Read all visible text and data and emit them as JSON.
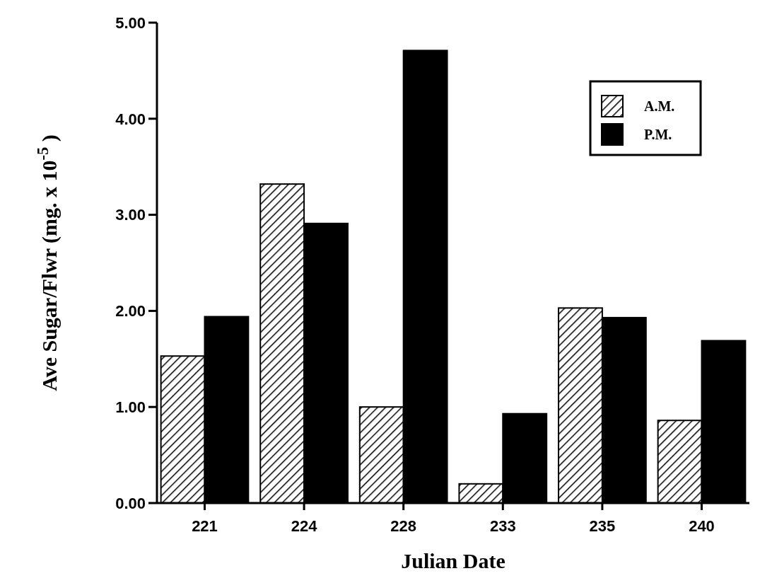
{
  "chart_data": {
    "type": "bar",
    "xlabel": "Julian Date",
    "ylabel": "Ave Sugar/Flwr (mg. x 10$^{-5}$ )",
    "categories": [
      "221",
      "224",
      "228",
      "233",
      "235",
      "240"
    ],
    "series": [
      {
        "name": "A.M.",
        "color": "#000000",
        "values": [
          1.53,
          3.32,
          1.0,
          0.2,
          2.03,
          0.86
        ]
      },
      {
        "name": "P.M.",
        "color": "#000000",
        "values": [
          1.94,
          2.91,
          4.71,
          0.93,
          1.93,
          1.69
        ]
      }
    ],
    "ylim": [
      0,
      5
    ],
    "yticks": [
      {
        "value": 0,
        "label": "0.00"
      },
      {
        "value": 1,
        "label": "1.00"
      },
      {
        "value": 2,
        "label": "2.00"
      },
      {
        "value": 3,
        "label": "3.00"
      },
      {
        "value": 4,
        "label": "4.00"
      },
      {
        "value": 5,
        "label": "5.00"
      }
    ],
    "grid": false,
    "legend": "top right"
  }
}
